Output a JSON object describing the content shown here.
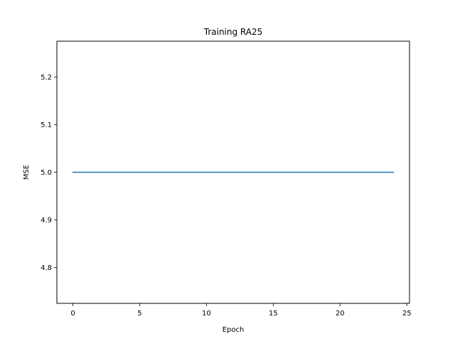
{
  "chart_data": {
    "type": "line",
    "title": "Training RA25",
    "xlabel": "Epoch",
    "ylabel": "MSE",
    "xlim": [
      -1.2,
      25.2
    ],
    "ylim": [
      4.725,
      5.275
    ],
    "xticks": [
      0,
      5,
      10,
      15,
      20,
      25
    ],
    "yticks": [
      4.8,
      4.9,
      5.0,
      5.1,
      5.2
    ],
    "xtick_labels": [
      "0",
      "5",
      "10",
      "15",
      "20",
      "25"
    ],
    "ytick_labels": [
      "4.8",
      "4.9",
      "5.0",
      "5.1",
      "5.2"
    ],
    "grid": false,
    "legend": "none",
    "series": [
      {
        "color": "#1f77b4",
        "x": [
          0,
          1,
          2,
          3,
          4,
          5,
          6,
          7,
          8,
          9,
          10,
          11,
          12,
          13,
          14,
          15,
          16,
          17,
          18,
          19,
          20,
          21,
          22,
          23,
          24
        ],
        "y": [
          5.0,
          5.0,
          5.0,
          5.0,
          5.0,
          5.0,
          5.0,
          5.0,
          5.0,
          5.0,
          5.0,
          5.0,
          5.0,
          5.0,
          5.0,
          5.0,
          5.0,
          5.0,
          5.0,
          5.0,
          5.0,
          5.0,
          5.0,
          5.0,
          5.0
        ]
      }
    ]
  }
}
